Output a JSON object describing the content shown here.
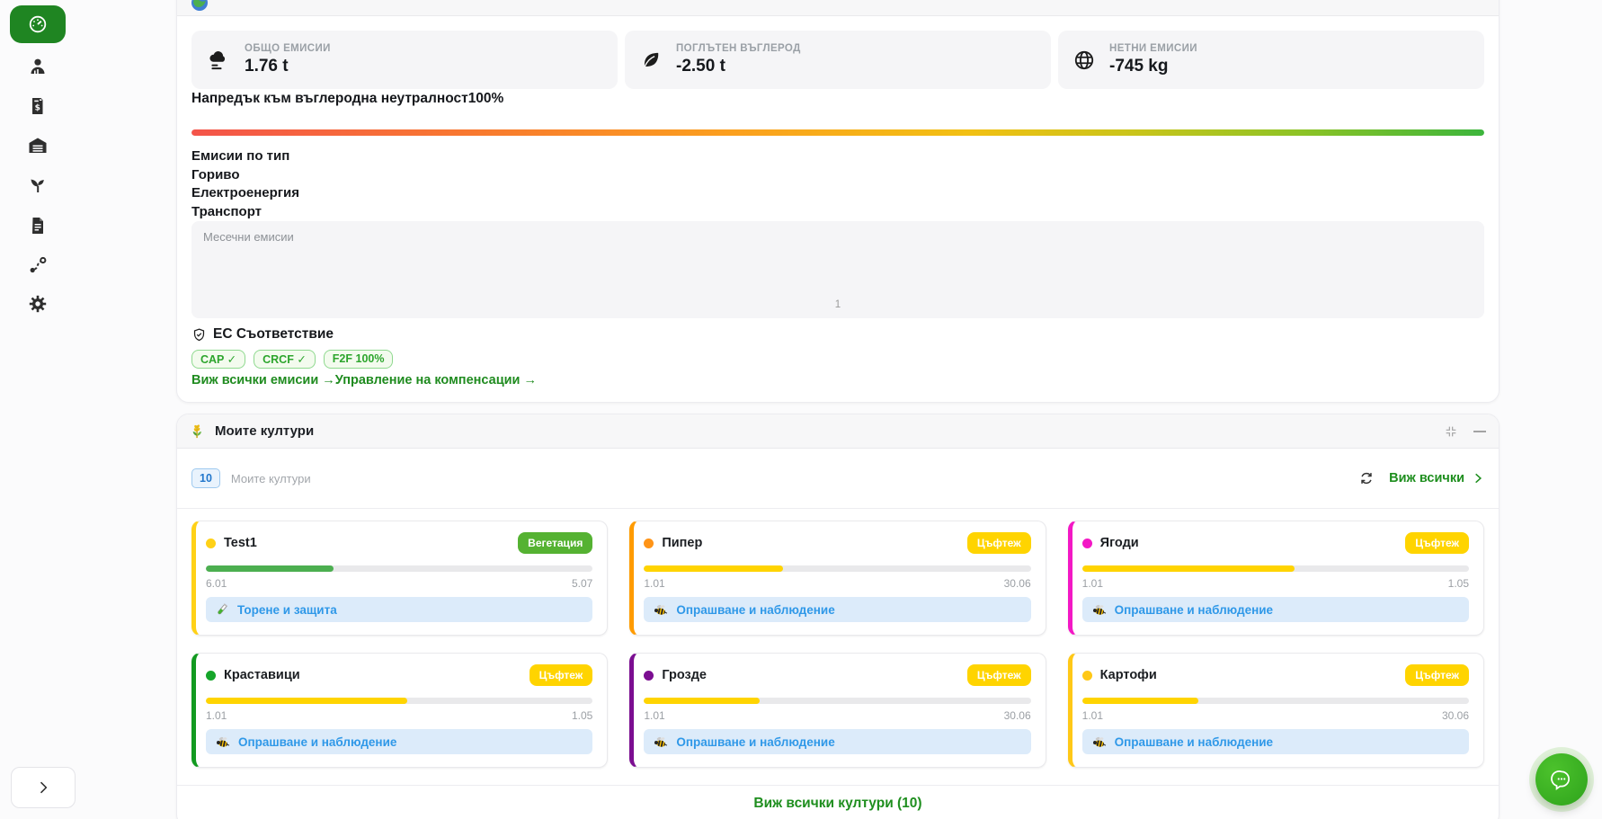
{
  "sidebar": {
    "items": [
      {
        "icon": "dashboard-gauge-icon",
        "active": true
      },
      {
        "icon": "user-icon",
        "active": false
      },
      {
        "icon": "invoice-icon",
        "active": false
      },
      {
        "icon": "warehouse-icon",
        "active": false
      },
      {
        "icon": "plant-icon",
        "active": false
      },
      {
        "icon": "document-icon",
        "active": false
      },
      {
        "icon": "route-icon",
        "active": false
      },
      {
        "icon": "settings-gear-icon",
        "active": false
      }
    ]
  },
  "emissions": {
    "stats": [
      {
        "icon": "smog-icon",
        "label": "ОБЩО ЕМИСИИ",
        "value": "1.76 t"
      },
      {
        "icon": "leaf-icon",
        "label": "ПОГЛЪТЕН ВЪГЛЕРОД",
        "value": "-2.50 t"
      },
      {
        "icon": "globe-icon",
        "label": "НЕТНИ ЕМИСИИ",
        "value": "-745 kg"
      }
    ],
    "progress_label": "Напредък към въглеродна неутралност",
    "progress_value": "100%",
    "by_type_title": "Емисии по тип",
    "types": [
      "Гориво",
      "Електроенергия",
      "Транспорт"
    ],
    "chart_title": "Месечни емисии",
    "chart_tick": "1",
    "compliance_title": "ЕС Съответствие",
    "badges": [
      "CAP ✓",
      "CRCF ✓",
      "F2F 100%"
    ],
    "link_all_emissions": "Виж всички емисии →",
    "link_offsets": "Управление на компенсации →",
    "gradient_colors": [
      "#f4544a",
      "#fba01e",
      "#f2c013",
      "#3cb53c"
    ]
  },
  "crops": {
    "title": "Моите култури",
    "count": "10",
    "subtitle": "Моите култури",
    "view_all": "Виж всички",
    "footer": "Виж всички култури (10)",
    "items": [
      {
        "name": "Test1",
        "stage": "Вегетация",
        "stage_bg": "#55b232",
        "dot": "#ffd117",
        "border": "#ffd117",
        "pct": 33,
        "fill": "#4caf50",
        "start": "6.01",
        "end": "5.07",
        "action": "Торене и защита",
        "icon": "test-tube-icon"
      },
      {
        "name": "Пипер",
        "stage": "Цъфтеж",
        "stage_bg": "#ffd400",
        "dot": "#ff9417",
        "border": "#ff9b00",
        "pct": 36,
        "fill": "#ffd400",
        "start": "1.01",
        "end": "30.06",
        "action": "Опрашване и наблюдение",
        "icon": "bee-icon"
      },
      {
        "name": "Ягоди",
        "stage": "Цъфтеж",
        "stage_bg": "#ffd400",
        "dot": "#f318c5",
        "border": "#f318c5",
        "pct": 55,
        "fill": "#ffd400",
        "start": "1.01",
        "end": "1.05",
        "action": "Опрашване и наблюдение",
        "icon": "bee-icon"
      },
      {
        "name": "Краставици",
        "stage": "Цъфтеж",
        "stage_bg": "#ffd400",
        "dot": "#16a52a",
        "border": "#129a20",
        "pct": 52,
        "fill": "#ffd400",
        "start": "1.01",
        "end": "1.05",
        "action": "Опрашване и наблюдение",
        "icon": "bee-icon"
      },
      {
        "name": "Грозде",
        "stage": "Цъфтеж",
        "stage_bg": "#ffd400",
        "dot": "#7b0e91",
        "border": "#7b0e91",
        "pct": 30,
        "fill": "#ffd400",
        "start": "1.01",
        "end": "30.06",
        "action": "Опрашване и наблюдение",
        "icon": "bee-icon"
      },
      {
        "name": "Картофи",
        "stage": "Цъфтеж",
        "stage_bg": "#ffd400",
        "dot": "#ffc817",
        "border": "#ffc817",
        "pct": 30,
        "fill": "#ffd400",
        "start": "1.01",
        "end": "30.06",
        "action": "Опрашване и наблюдение",
        "icon": "bee-icon"
      }
    ]
  },
  "colors": {
    "accent_green": "#1f8522",
    "link_green": "#1f8b1f",
    "chip_blue_text": "#2f98e8",
    "chip_blue_bg": "#dcebfa",
    "stage_yellow": "#ffd400",
    "stage_green": "#55b232"
  }
}
